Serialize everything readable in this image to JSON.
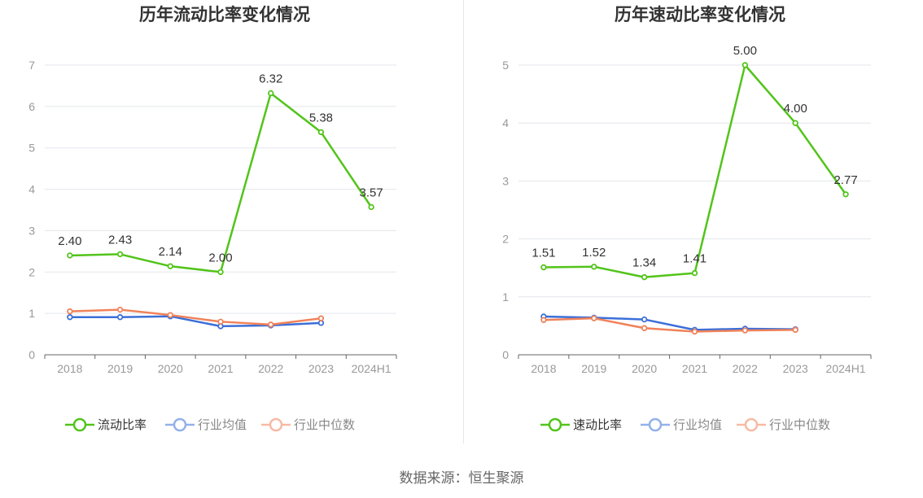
{
  "footer": {
    "source": "数据来源：恒生聚源"
  },
  "chart_data": [
    {
      "type": "line",
      "title": "历年流动比率变化情况",
      "categories": [
        "2018",
        "2019",
        "2020",
        "2021",
        "2022",
        "2023",
        "2024H1"
      ],
      "ylim": [
        0,
        7
      ],
      "yticks": [
        0,
        1,
        2,
        3,
        4,
        5,
        6,
        7
      ],
      "grid": true,
      "legend_position": "bottom",
      "series": [
        {
          "name": "流动比率",
          "color": "#52c41a",
          "values": [
            2.4,
            2.43,
            2.14,
            2.0,
            6.32,
            5.38,
            3.57
          ],
          "labels": [
            "2.40",
            "2.43",
            "2.14",
            "2.00",
            "6.32",
            "5.38",
            "3.57"
          ]
        },
        {
          "name": "行业均值",
          "color": "#3b6fd8",
          "values": [
            0.91,
            0.91,
            0.93,
            0.69,
            0.71,
            0.77,
            null
          ]
        },
        {
          "name": "行业中位数",
          "color": "#f0825a",
          "values": [
            1.05,
            1.09,
            0.96,
            0.8,
            0.73,
            0.88,
            null
          ]
        }
      ]
    },
    {
      "type": "line",
      "title": "历年速动比率变化情况",
      "categories": [
        "2018",
        "2019",
        "2020",
        "2021",
        "2022",
        "2023",
        "2024H1"
      ],
      "ylim": [
        0,
        5
      ],
      "yticks": [
        0,
        1,
        2,
        3,
        4,
        5
      ],
      "grid": true,
      "legend_position": "bottom",
      "series": [
        {
          "name": "速动比率",
          "color": "#52c41a",
          "values": [
            1.51,
            1.52,
            1.34,
            1.41,
            5.0,
            4.0,
            2.77
          ],
          "labels": [
            "1.51",
            "1.52",
            "1.34",
            "1.41",
            "5.00",
            "4.00",
            "2.77"
          ]
        },
        {
          "name": "行业均值",
          "color": "#3b6fd8",
          "values": [
            0.66,
            0.64,
            0.61,
            0.43,
            0.45,
            0.44,
            null
          ]
        },
        {
          "name": "行业中位数",
          "color": "#f0825a",
          "values": [
            0.6,
            0.63,
            0.46,
            0.4,
            0.42,
            0.43,
            null
          ]
        }
      ]
    }
  ]
}
